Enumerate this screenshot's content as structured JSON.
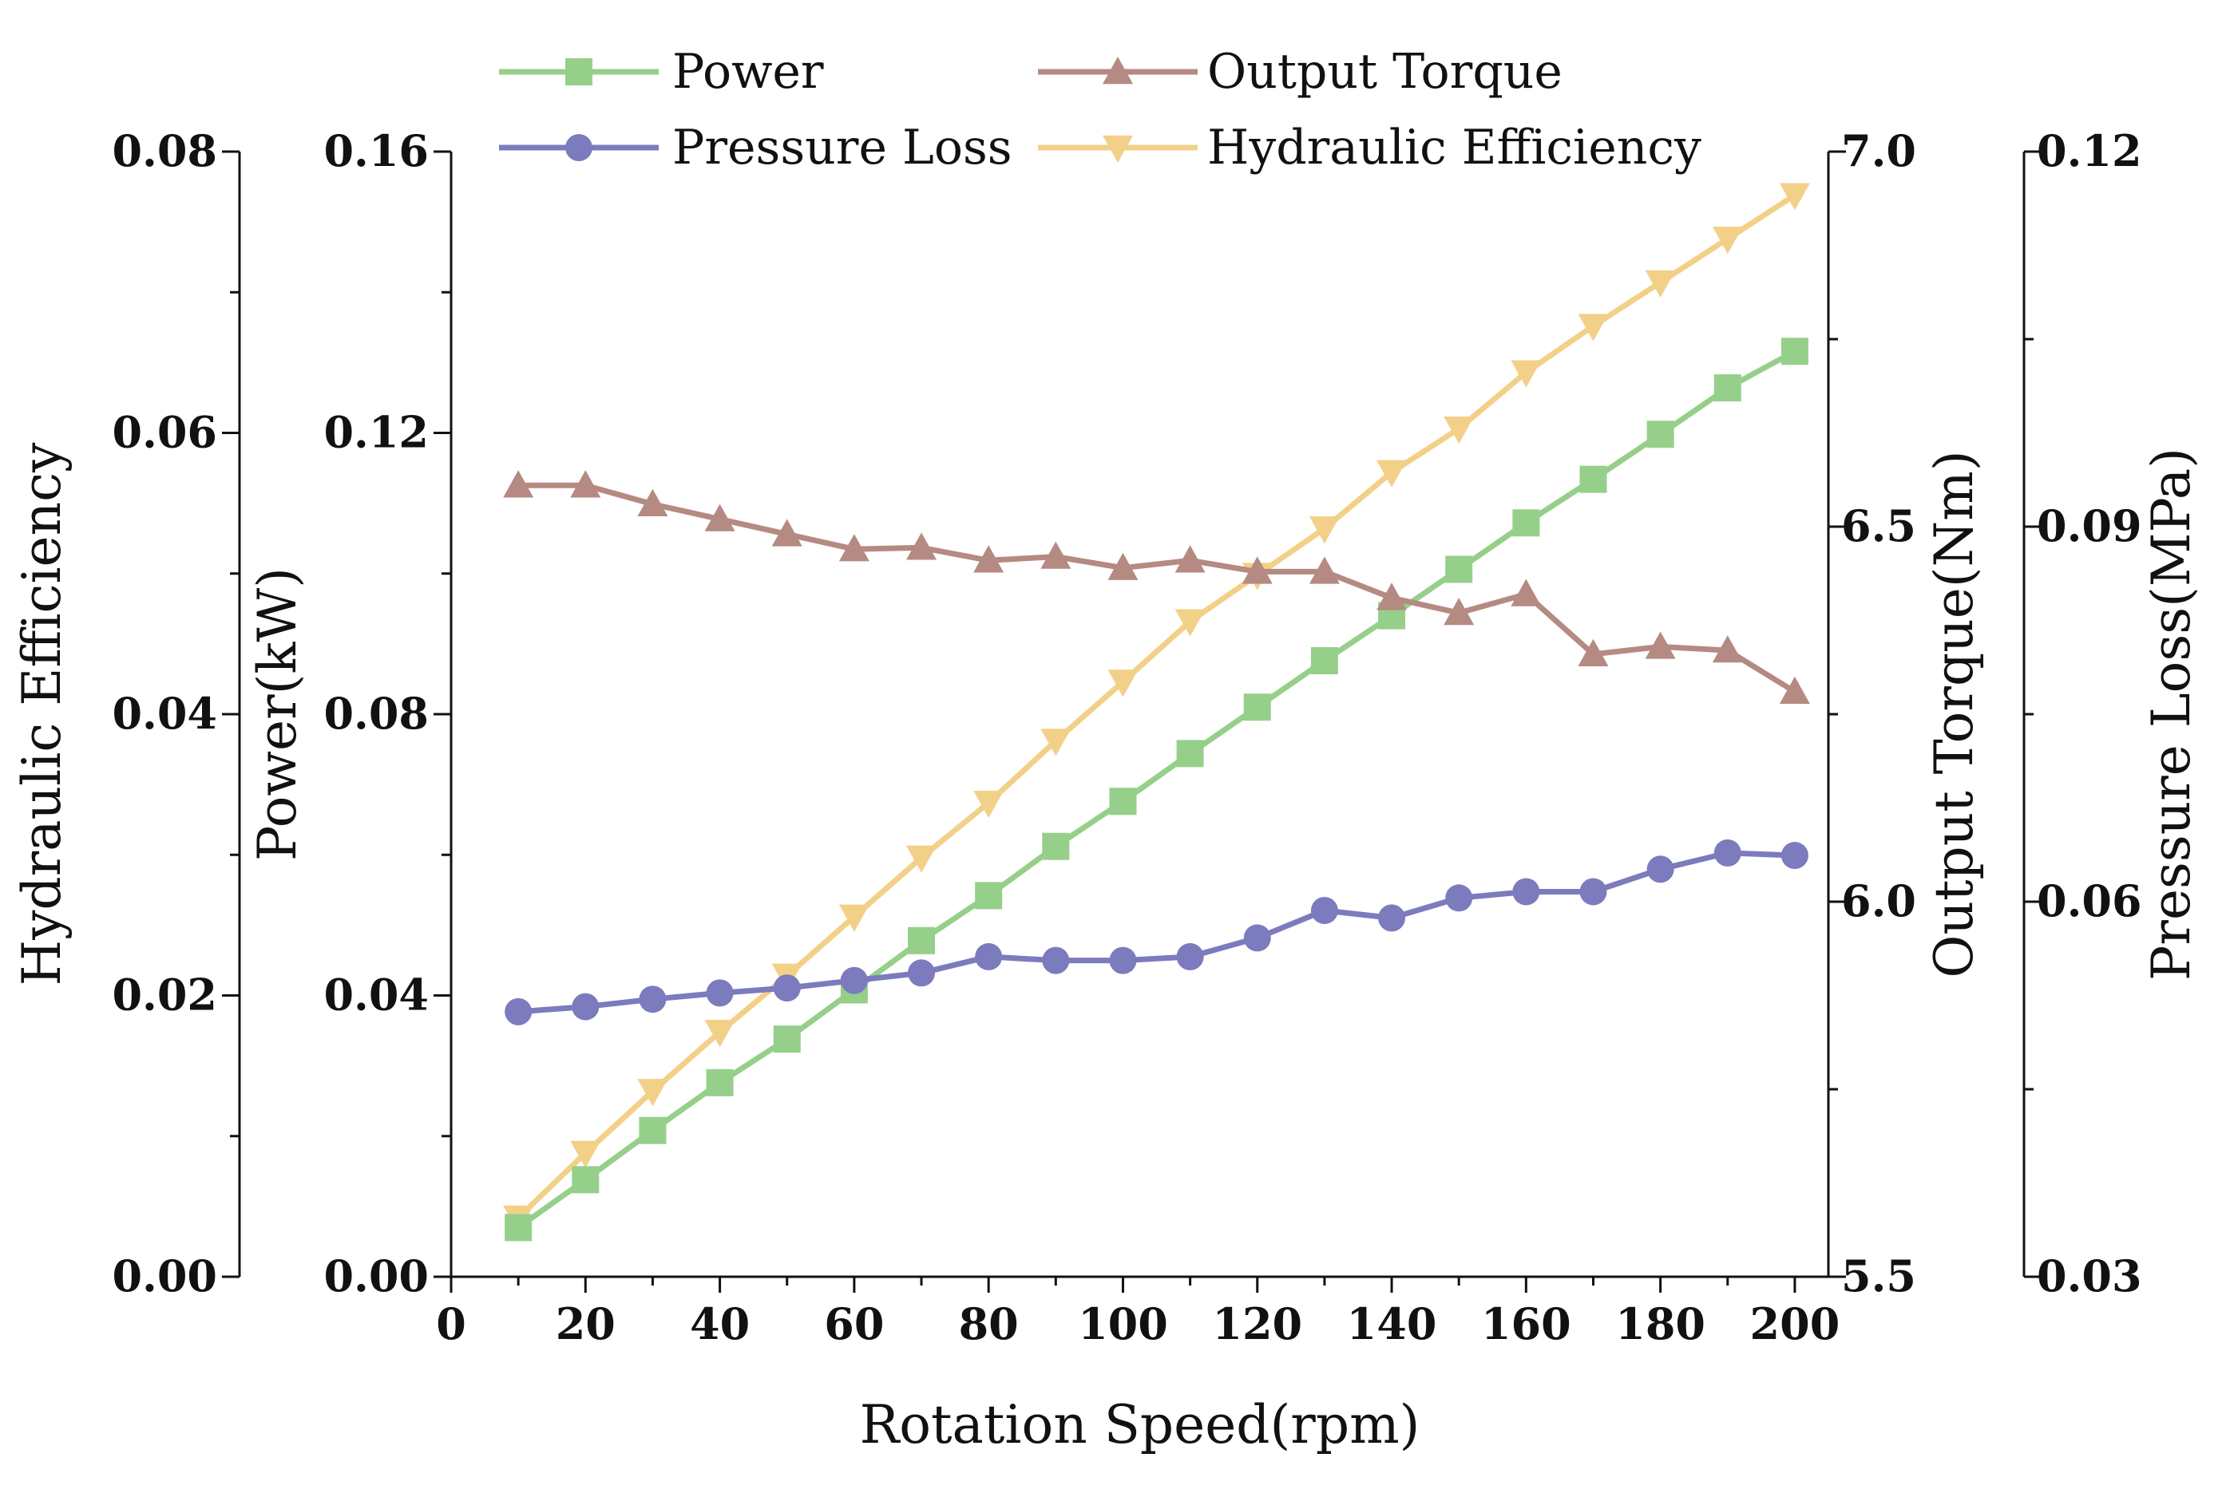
{
  "chart_data": {
    "type": "line",
    "x": [
      10,
      20,
      30,
      40,
      50,
      60,
      70,
      80,
      90,
      100,
      110,
      120,
      130,
      140,
      150,
      160,
      170,
      180,
      190,
      200
    ],
    "xlabel": "Rotation Speed(rpm)",
    "xlim": [
      0,
      205
    ],
    "xticks": [
      "0",
      "20",
      "40",
      "60",
      "80",
      "100",
      "120",
      "140",
      "160",
      "180",
      "200"
    ],
    "grid": false,
    "legend_position": "top",
    "axes": [
      {
        "id": "efficiency",
        "label": "Hydraulic Efficiency",
        "position": "left-outer",
        "range": [
          0,
          0.08
        ],
        "ticks": [
          "0.00",
          "0.02",
          "0.04",
          "0.06",
          "0.08"
        ]
      },
      {
        "id": "power",
        "label": "Power(kW)",
        "position": "left",
        "range": [
          0,
          0.16
        ],
        "ticks": [
          "0.00",
          "0.04",
          "0.08",
          "0.12",
          "0.16"
        ]
      },
      {
        "id": "torque",
        "label": "Output Torque(Nm)",
        "position": "right",
        "range": [
          5.5,
          7.0
        ],
        "ticks": [
          "5.5",
          "6.0",
          "6.5",
          "7.0"
        ]
      },
      {
        "id": "pressure",
        "label": "Pressure Loss(MPa)",
        "position": "right-outer",
        "range": [
          0.03,
          0.12
        ],
        "ticks": [
          "0.03",
          "0.06",
          "0.09",
          "0.12"
        ]
      }
    ],
    "series": [
      {
        "name": "Power",
        "axis": "power",
        "marker": "square",
        "color": "#96cf8a",
        "values": [
          0.007,
          0.0138,
          0.0208,
          0.0276,
          0.0338,
          0.0408,
          0.0478,
          0.0542,
          0.0612,
          0.0676,
          0.0744,
          0.081,
          0.0876,
          0.094,
          0.1006,
          0.1072,
          0.1134,
          0.1198,
          0.1264,
          0.1316
        ]
      },
      {
        "name": "Output Torque",
        "axis": "torque",
        "marker": "triangle-up",
        "color": "#b58a83",
        "values": [
          6.555,
          6.555,
          6.53,
          6.51,
          6.49,
          6.47,
          6.472,
          6.455,
          6.46,
          6.445,
          6.455,
          6.44,
          6.44,
          6.405,
          6.385,
          6.41,
          6.33,
          6.34,
          6.335,
          6.28
        ]
      },
      {
        "name": "Pressure Loss",
        "axis": "pressure",
        "marker": "circle",
        "color": "#7b7bbd",
        "values": [
          0.0512,
          0.0516,
          0.0522,
          0.0527,
          0.0531,
          0.0537,
          0.0543,
          0.0556,
          0.0553,
          0.0553,
          0.0556,
          0.0571,
          0.0593,
          0.0587,
          0.0603,
          0.0608,
          0.0608,
          0.0626,
          0.0639,
          0.0637
        ]
      },
      {
        "name": "Hydraulic Efficiency",
        "axis": "efficiency",
        "marker": "triangle-down",
        "color": "#f3d088",
        "values": [
          0.0042,
          0.0088,
          0.0132,
          0.0174,
          0.0214,
          0.0256,
          0.0298,
          0.0337,
          0.0381,
          0.0423,
          0.0466,
          0.0499,
          0.0532,
          0.0572,
          0.0603,
          0.0643,
          0.0676,
          0.0707,
          0.0738,
          0.0769
        ]
      }
    ]
  }
}
